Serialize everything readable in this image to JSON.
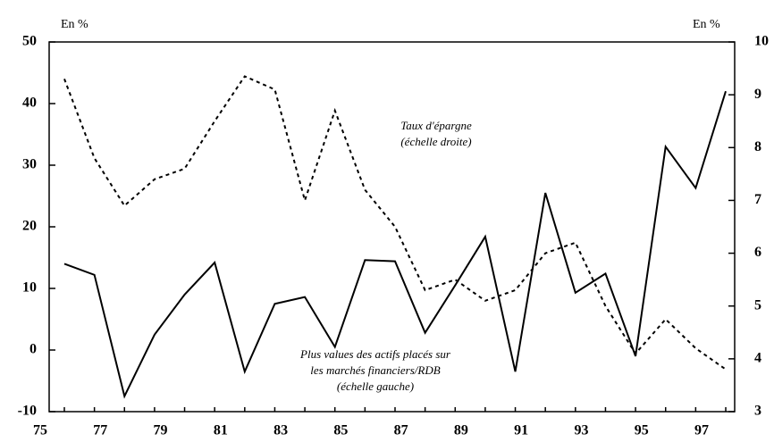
{
  "chart_data": {
    "type": "line",
    "y_label": "En %",
    "y2_label": "En %",
    "categories": [
      "75",
      null,
      "77",
      null,
      "79",
      null,
      "81",
      null,
      "83",
      null,
      "85",
      null,
      "87",
      null,
      "89",
      null,
      "91",
      null,
      "93",
      null,
      "95",
      null,
      "97"
    ],
    "series": [
      {
        "name": [
          "Plus values des actifs placés sur",
          "les marchés financiers/RDB",
          "(échelle gauche)"
        ],
        "color": "#000000",
        "dash": "solid",
        "axis": "y",
        "values": [
          14,
          12.2,
          -7.5,
          2.5,
          9,
          14.2,
          -3.5,
          7.5,
          8.6,
          0.5,
          14.6,
          14.4,
          2.8,
          10.5,
          18.4,
          -3.5,
          25.5,
          9.3,
          12.4,
          -1,
          33,
          26.3,
          42
        ]
      },
      {
        "name": [
          "Taux d'épargne",
          "(échelle droite)"
        ],
        "color": "#000000",
        "dash": "dashed",
        "axis": "y2",
        "values": [
          9.3,
          7.8,
          6.9,
          7.4,
          7.6,
          8.5,
          9.35,
          9.1,
          7.0,
          8.7,
          7.2,
          6.5,
          5.3,
          5.5,
          5.1,
          5.3,
          6.0,
          6.2,
          5.0,
          4.1,
          4.75,
          4.2,
          3.8
        ]
      }
    ],
    "ylim": [
      -10,
      50
    ],
    "yticks": [
      -10,
      0,
      10,
      20,
      30,
      40,
      50
    ],
    "y2lim": [
      3,
      10
    ],
    "y2ticks": [
      3,
      4,
      5,
      6,
      7,
      8,
      9,
      10
    ]
  }
}
